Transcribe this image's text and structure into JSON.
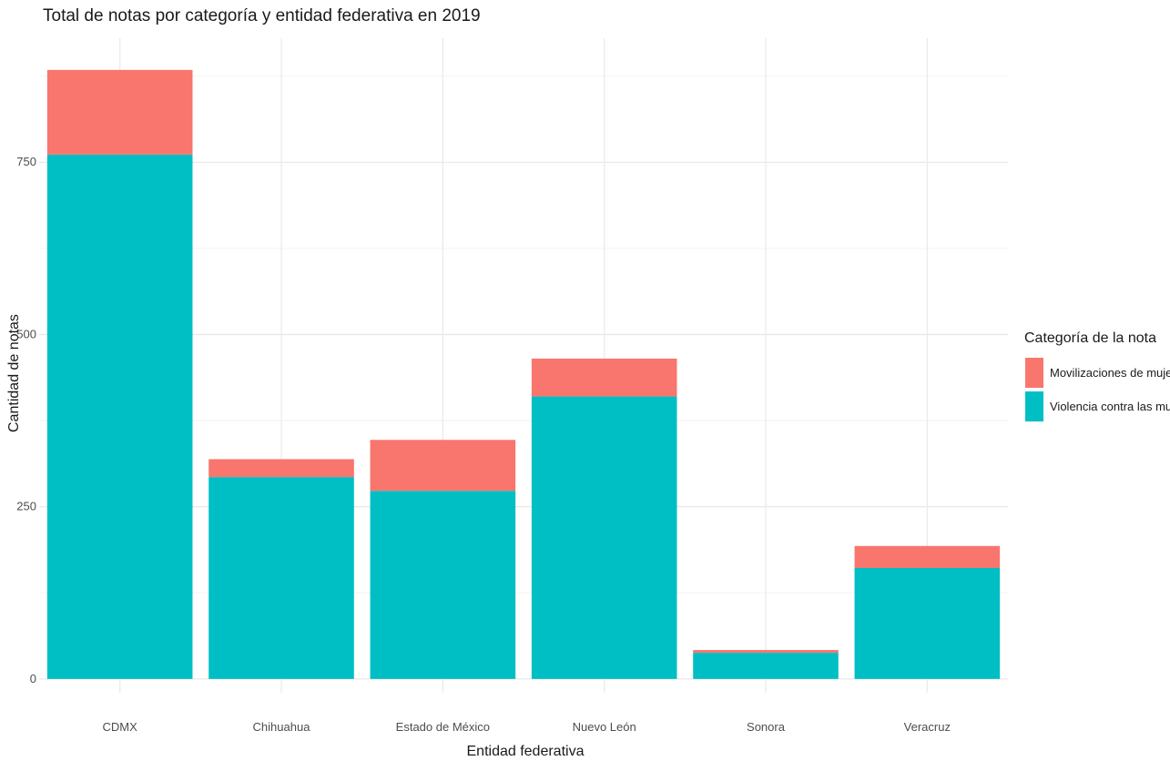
{
  "chart_data": {
    "type": "bar",
    "stacked": true,
    "title": "Total de notas por categoría y entidad federativa en 2019",
    "xlabel": "Entidad federativa",
    "ylabel": "Cantidad de notas",
    "categories": [
      "CDMX",
      "Chihuahua",
      "Estado de México",
      "Nuevo León",
      "Sonora",
      "Veracruz"
    ],
    "series": [
      {
        "name": "Violencia contra las mujeres",
        "color": "#00BFC4",
        "values": [
          761,
          293,
          273,
          410,
          38,
          161
        ]
      },
      {
        "name": "Movilizaciones de mujeres",
        "color": "#F8766D",
        "values": [
          123,
          26,
          74,
          55,
          4,
          32
        ]
      }
    ],
    "ylim": [
      -20,
      930
    ],
    "yticks": [
      0,
      250,
      500,
      750
    ],
    "grid": true,
    "legend": {
      "title": "Categoría de la nota",
      "position": "right",
      "entries": [
        "Movilizaciones de mujeres",
        "Violencia contra las mujeres"
      ]
    }
  }
}
